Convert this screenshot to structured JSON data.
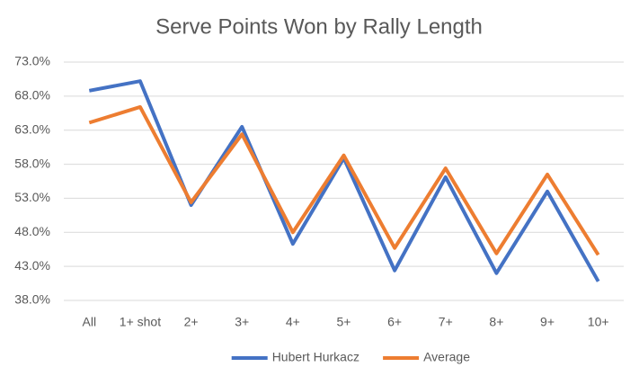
{
  "chart_data": {
    "type": "line",
    "title": "Serve Points Won by Rally Length",
    "categories": [
      "All",
      "1+ shot",
      "2+",
      "3+",
      "4+",
      "5+",
      "6+",
      "7+",
      "8+",
      "9+",
      "10+"
    ],
    "series": [
      {
        "name": "Hubert Hurkacz",
        "color": "#4472c4",
        "values": [
          68.8,
          70.2,
          52.0,
          63.5,
          46.3,
          58.9,
          42.4,
          56.1,
          42.0,
          54.0,
          40.8
        ]
      },
      {
        "name": "Average",
        "color": "#ed7d31",
        "values": [
          64.1,
          66.4,
          52.4,
          62.4,
          48.0,
          59.3,
          45.7,
          57.4,
          44.9,
          56.5,
          44.7
        ]
      }
    ],
    "ylim": [
      38,
      73
    ],
    "yticks": [
      {
        "value": 38,
        "label": "38.0%"
      },
      {
        "value": 43,
        "label": "43.0%"
      },
      {
        "value": 48,
        "label": "48.0%"
      },
      {
        "value": 53,
        "label": "53.0%"
      },
      {
        "value": 58,
        "label": "58.0%"
      },
      {
        "value": 63,
        "label": "63.0%"
      },
      {
        "value": 68,
        "label": "68.0%"
      },
      {
        "value": 73,
        "label": "73.0%"
      }
    ],
    "grid": true,
    "legend": "bottom"
  }
}
